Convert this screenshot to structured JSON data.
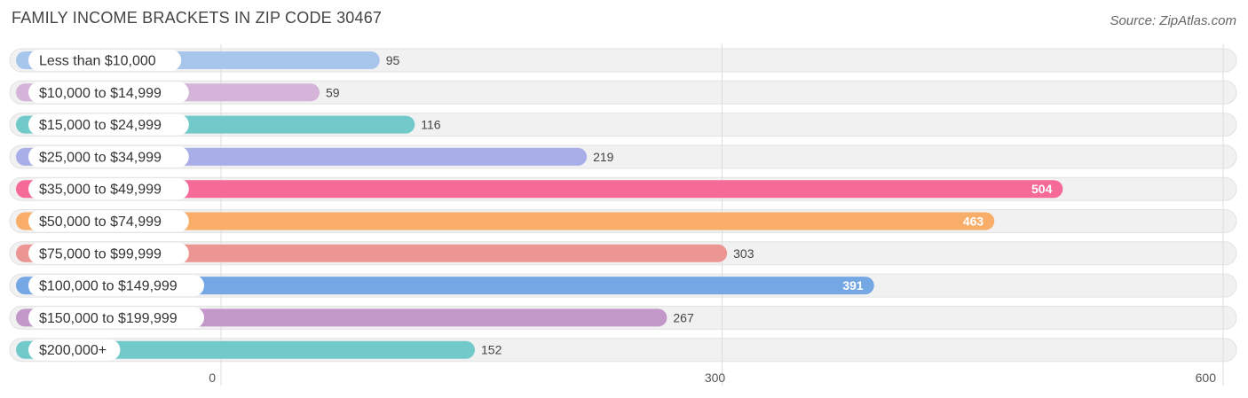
{
  "header": {
    "title": "FAMILY INCOME BRACKETS IN ZIP CODE 30467",
    "source": "Source: ZipAtlas.com"
  },
  "chart_data": {
    "type": "bar",
    "orientation": "horizontal",
    "title": "FAMILY INCOME BRACKETS IN ZIP CODE 30467",
    "xlabel": "",
    "ylabel": "",
    "xlim": [
      0,
      600
    ],
    "ticks": [
      0,
      300,
      600
    ],
    "grid": true,
    "categories": [
      "Less than $10,000",
      "$10,000 to $14,999",
      "$15,000 to $24,999",
      "$25,000 to $34,999",
      "$35,000 to $49,999",
      "$50,000 to $74,999",
      "$75,000 to $99,999",
      "$100,000 to $149,999",
      "$150,000 to $199,999",
      "$200,000+"
    ],
    "values": [
      95,
      59,
      116,
      219,
      504,
      463,
      303,
      391,
      267,
      152
    ],
    "colors": [
      "#a8c6ec",
      "#d4b4d8",
      "#72c9c9",
      "#a9aee8",
      "#f56a96",
      "#f8ad68",
      "#eb9693",
      "#74a7e3",
      "#c198c8",
      "#72c9c9"
    ]
  }
}
